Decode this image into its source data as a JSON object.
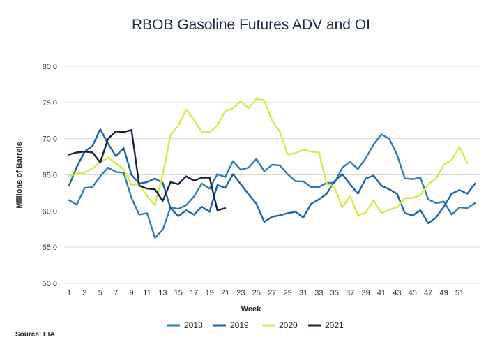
{
  "chart_data": {
    "type": "line",
    "title": "RBOB Gasoline Futures ADV and OI",
    "xlabel": "Week",
    "ylabel": "Millions of Barrels",
    "ylim": [
      50,
      80
    ],
    "yticks": [
      "50.0",
      "55.0",
      "60.0",
      "65.0",
      "70.0",
      "75.0",
      "80.0"
    ],
    "xticks": [
      "1",
      "3",
      "5",
      "7",
      "9",
      "11",
      "13",
      "15",
      "17",
      "19",
      "21",
      "23",
      "25",
      "27",
      "29",
      "31",
      "33",
      "35",
      "37",
      "39",
      "41",
      "43",
      "45",
      "47",
      "49",
      "51"
    ],
    "xrange": [
      1,
      53
    ],
    "grid": true,
    "legend_position": "bottom",
    "source": "Source: EIA",
    "series": [
      {
        "name": "2018",
        "color": "#2b7fae",
        "values": [
          61.5,
          60.9,
          63.2,
          63.3,
          64.8,
          66.0,
          65.4,
          65.3,
          61.8,
          59.5,
          59.7,
          56.3,
          57.4,
          60.5,
          60.3,
          60.8,
          62.0,
          63.8,
          63.1,
          65.1,
          64.7,
          66.9,
          65.7,
          66.0,
          67.2,
          65.5,
          66.4,
          66.3,
          65.1,
          64.1,
          64.1,
          63.3,
          63.3,
          63.9,
          63.9,
          66.0,
          66.8,
          65.8,
          67.3,
          69.2,
          70.6,
          70.0,
          67.8,
          64.5,
          64.4,
          64.6,
          61.6,
          61.1,
          61.3,
          59.5,
          60.5,
          60.4,
          61.1
        ]
      },
      {
        "name": "2019",
        "color": "#1663a6",
        "values": [
          63.5,
          66.1,
          68.2,
          69.0,
          71.3,
          69.3,
          67.6,
          68.7,
          65.0,
          63.8,
          64.0,
          64.5,
          63.9,
          60.4,
          59.3,
          60.1,
          59.5,
          60.6,
          59.9,
          63.6,
          63.2,
          65.1,
          63.7,
          62.3,
          61.0,
          58.5,
          59.2,
          59.4,
          59.7,
          59.9,
          59.1,
          61.0,
          61.6,
          62.4,
          64.1,
          65.1,
          63.7,
          62.4,
          64.5,
          64.9,
          63.5,
          63.0,
          62.4,
          59.7,
          59.4,
          60.1,
          58.3,
          59.1,
          60.6,
          62.4,
          62.9,
          62.4,
          63.8
        ]
      },
      {
        "name": "2020",
        "color": "#d9e84a",
        "values": [
          64.8,
          65.2,
          65.3,
          65.9,
          66.7,
          67.4,
          66.6,
          65.8,
          63.6,
          63.7,
          62.1,
          60.8,
          65.0,
          70.5,
          71.8,
          74.0,
          72.6,
          70.9,
          70.9,
          71.8,
          73.8,
          74.2,
          75.2,
          74.2,
          75.5,
          75.3,
          72.5,
          71.0,
          67.8,
          68.0,
          68.5,
          68.2,
          68.1,
          63.8,
          63.3,
          60.5,
          62.1,
          59.4,
          59.8,
          61.5,
          59.7,
          60.2,
          60.5,
          61.8,
          61.8,
          62.2,
          63.7,
          64.5,
          66.4,
          67.1,
          68.9,
          66.6
        ]
      },
      {
        "name": "2021",
        "color": "#16233f",
        "values": [
          67.8,
          68.1,
          68.2,
          68.1,
          66.7,
          70.0,
          71.0,
          70.9,
          71.2,
          63.5,
          63.1,
          63.0,
          61.4,
          64.0,
          63.7,
          64.8,
          64.2,
          64.6,
          64.6,
          60.1,
          60.4
        ]
      }
    ]
  }
}
